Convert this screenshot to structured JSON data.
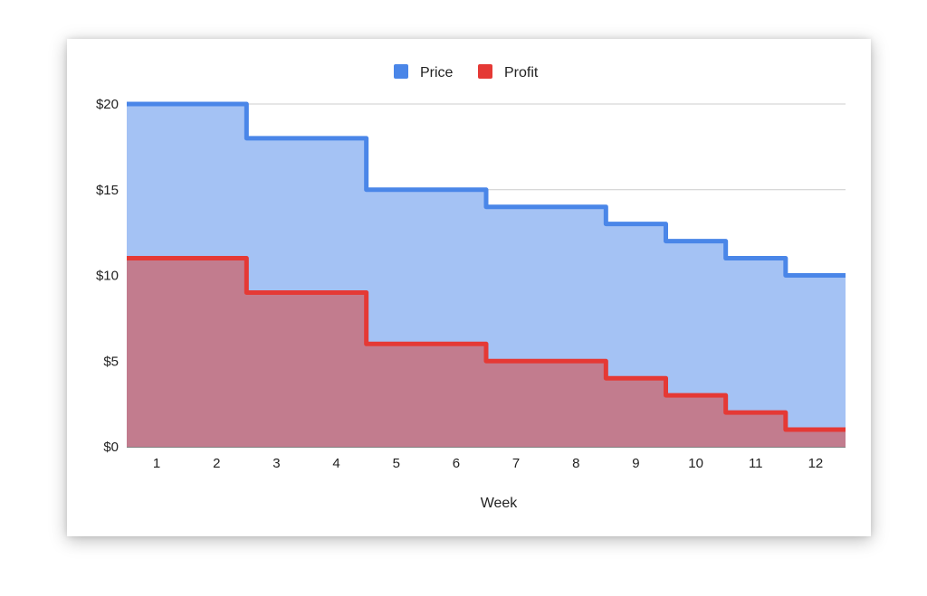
{
  "chart_data": {
    "type": "area",
    "step": true,
    "x_label": "Week",
    "categories": [
      "1",
      "2",
      "3",
      "4",
      "5",
      "6",
      "7",
      "8",
      "9",
      "10",
      "11",
      "12"
    ],
    "y_ticks": [
      "$0",
      "$5",
      "$10",
      "$15",
      "$20"
    ],
    "y_range": [
      0,
      20
    ],
    "grid": true,
    "legend_position": "top",
    "series": [
      {
        "name": "Price",
        "color": "#4a86e8",
        "fill": "#a4c2f4",
        "values": [
          20,
          20,
          18,
          18,
          15,
          15,
          14,
          14,
          13,
          12,
          11,
          10
        ]
      },
      {
        "name": "Profit",
        "color": "#e53935",
        "fill": "#c27c8e",
        "values": [
          11,
          11,
          9,
          9,
          6,
          6,
          5,
          5,
          4,
          3,
          2,
          1
        ]
      }
    ]
  }
}
